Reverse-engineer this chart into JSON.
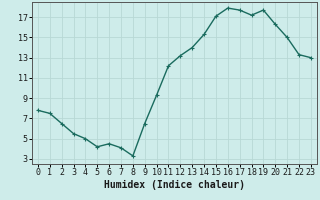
{
  "x": [
    0,
    1,
    2,
    3,
    4,
    5,
    6,
    7,
    8,
    9,
    10,
    11,
    12,
    13,
    14,
    15,
    16,
    17,
    18,
    19,
    20,
    21,
    22,
    23
  ],
  "y": [
    7.8,
    7.5,
    6.5,
    5.5,
    5.0,
    4.2,
    4.5,
    4.1,
    3.3,
    6.5,
    9.3,
    12.2,
    13.2,
    14.0,
    15.3,
    17.1,
    17.9,
    17.7,
    17.2,
    17.7,
    16.3,
    15.0,
    13.3,
    13.0
  ],
  "line_color": "#1a6b5e",
  "marker": "+",
  "marker_size": 3,
  "marker_lw": 0.8,
  "bg_color": "#ceecea",
  "grid_color": "#b8d8d5",
  "xlabel": "Humidex (Indice chaleur)",
  "xlim": [
    -0.5,
    23.5
  ],
  "ylim": [
    2.5,
    18.5
  ],
  "yticks": [
    3,
    5,
    7,
    9,
    11,
    13,
    15,
    17
  ],
  "xtick_labels": [
    "0",
    "1",
    "2",
    "3",
    "4",
    "5",
    "6",
    "7",
    "8",
    "9",
    "10",
    "11",
    "12",
    "13",
    "14",
    "15",
    "16",
    "17",
    "18",
    "19",
    "20",
    "21",
    "22",
    "23"
  ],
  "xlabel_fontsize": 7,
  "tick_fontsize": 6,
  "line_width": 1.0
}
